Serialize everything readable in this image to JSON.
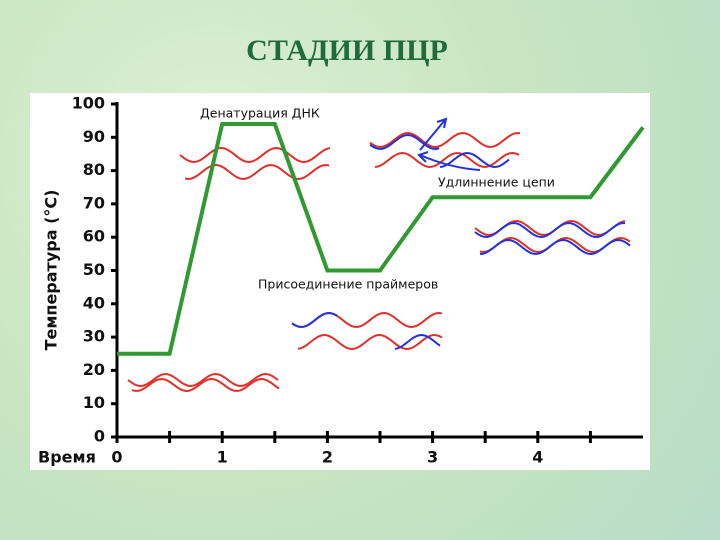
{
  "title": "СТАДИИ ПЦР",
  "chart_data": {
    "type": "line",
    "x": [
      0,
      0.5,
      1,
      1.5,
      2,
      2.5,
      3,
      4.5,
      5
    ],
    "series": [
      {
        "color": "#2f9a2f",
        "values": [
          25,
          25,
          94,
          94,
          50,
          50,
          72,
          72,
          93
        ]
      }
    ],
    "xlim": [
      0,
      5
    ],
    "ylim": [
      0,
      100
    ],
    "xticks": [
      0,
      1,
      2,
      3,
      4
    ],
    "xminorticks": [
      0.5,
      1.5,
      2.5,
      3.5,
      4.5
    ],
    "yticks": [
      0,
      10,
      20,
      30,
      40,
      50,
      60,
      70,
      80,
      90,
      100
    ],
    "xlabel": "Время",
    "ylabel": "Температура (°C)",
    "annotations": [
      "Денатурация ДНК",
      "Удлиннение цепи",
      "Присоединение праймеров"
    ]
  }
}
